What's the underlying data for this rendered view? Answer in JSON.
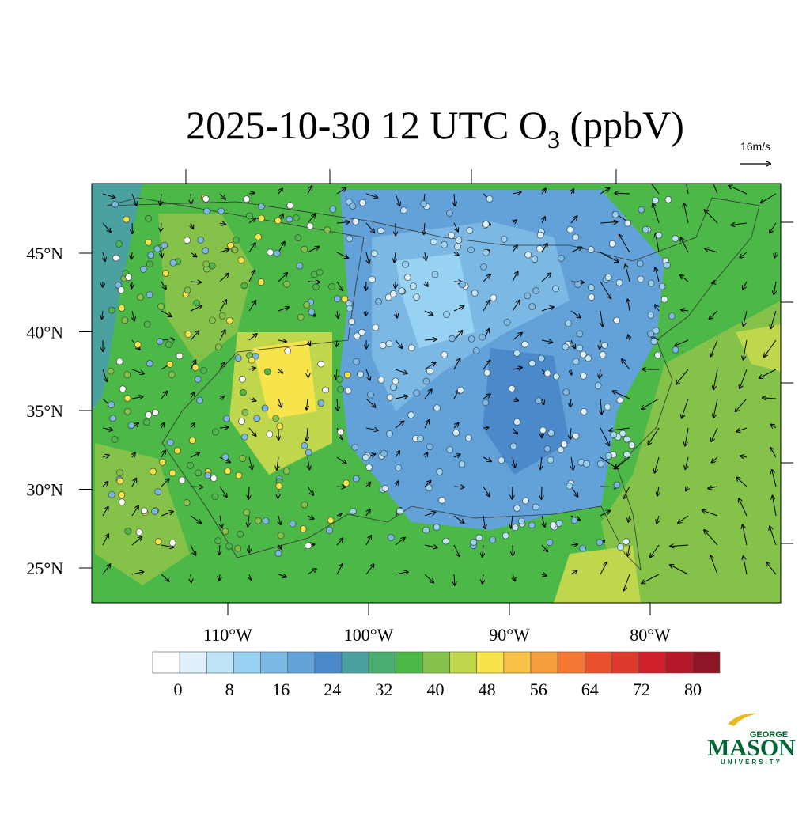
{
  "header": {
    "title_main": "2025-10-30 12 UTC O",
    "title_sub": "3",
    "title_tail": " (ppbV)"
  },
  "wind_reference": "16m/s",
  "map": {
    "lat_labels": [
      {
        "value": 45,
        "label": "45°N"
      },
      {
        "value": 40,
        "label": "40°N"
      },
      {
        "value": 35,
        "label": "35°N"
      },
      {
        "value": 30,
        "label": "30°N"
      },
      {
        "value": 25,
        "label": "25°N"
      }
    ],
    "lon_labels": [
      {
        "value": 110,
        "label": "110°W"
      },
      {
        "value": 100,
        "label": "100°W"
      },
      {
        "value": 90,
        "label": "90°W"
      },
      {
        "value": 80,
        "label": "80°W"
      }
    ]
  },
  "colorbar": {
    "colors": [
      "#ffffff",
      "#dff1fb",
      "#bfe4f7",
      "#97d2f2",
      "#7cb8e4",
      "#63a2d8",
      "#4a8acb",
      "#4aa1a0",
      "#4aac6e",
      "#4bb848",
      "#84c24a",
      "#bed74d",
      "#f7e34a",
      "#f8c046",
      "#f69d3e",
      "#f47833",
      "#e9512e",
      "#dc3a2c",
      "#cf1f2b",
      "#b4192a",
      "#8e1526"
    ],
    "ticks": [
      0,
      8,
      16,
      24,
      32,
      40,
      48,
      56,
      64,
      72,
      80
    ]
  },
  "logo": {
    "top": "GEORGE",
    "name": "MASON",
    "bottom": "UNIVERSITY"
  }
}
